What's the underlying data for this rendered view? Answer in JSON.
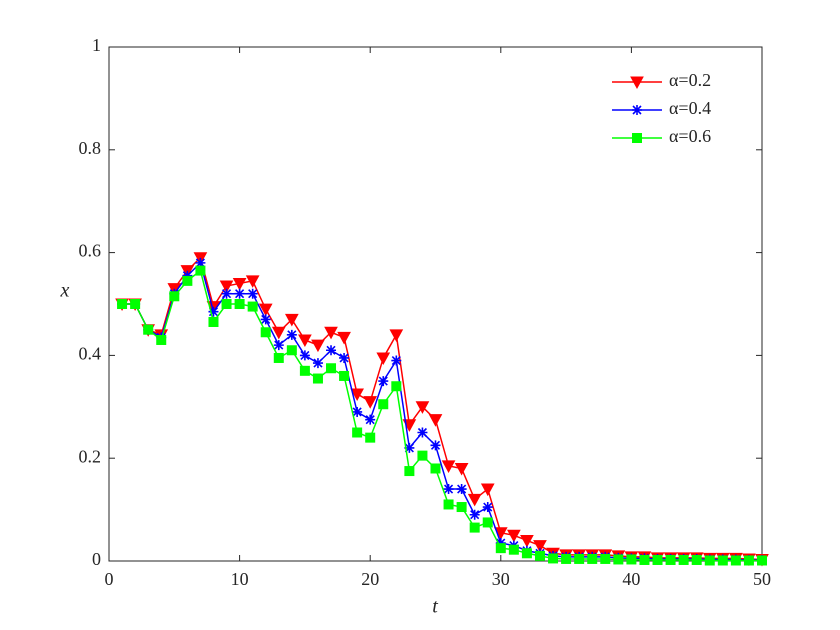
{
  "chart_data": {
    "type": "line",
    "x_label": "t",
    "y_label": "x",
    "x": [
      1,
      2,
      3,
      4,
      5,
      6,
      7,
      8,
      9,
      10,
      11,
      12,
      13,
      14,
      15,
      16,
      17,
      18,
      19,
      20,
      21,
      22,
      23,
      24,
      25,
      26,
      27,
      28,
      29,
      30,
      31,
      32,
      33,
      34,
      35,
      36,
      37,
      38,
      39,
      40,
      41,
      42,
      43,
      44,
      45,
      46,
      47,
      48,
      49,
      50
    ],
    "series": [
      {
        "name": "α=0.2",
        "color": "#ff0000",
        "marker": "triangle-down",
        "values": [
          0.5,
          0.5,
          0.45,
          0.44,
          0.53,
          0.565,
          0.59,
          0.495,
          0.535,
          0.54,
          0.545,
          0.49,
          0.445,
          0.47,
          0.43,
          0.42,
          0.445,
          0.435,
          0.325,
          0.31,
          0.395,
          0.44,
          0.265,
          0.3,
          0.275,
          0.185,
          0.18,
          0.12,
          0.14,
          0.055,
          0.05,
          0.04,
          0.03,
          0.015,
          0.012,
          0.012,
          0.012,
          0.012,
          0.01,
          0.008,
          0.008,
          0.006,
          0.006,
          0.006,
          0.006,
          0.005,
          0.005,
          0.005,
          0.004,
          0.003
        ]
      },
      {
        "name": "α=0.4",
        "color": "#0000ff",
        "marker": "asterisk",
        "values": [
          0.5,
          0.5,
          0.45,
          0.435,
          0.52,
          0.555,
          0.58,
          0.485,
          0.52,
          0.52,
          0.52,
          0.47,
          0.42,
          0.44,
          0.4,
          0.385,
          0.41,
          0.395,
          0.29,
          0.275,
          0.35,
          0.39,
          0.22,
          0.25,
          0.225,
          0.14,
          0.14,
          0.09,
          0.105,
          0.035,
          0.03,
          0.02,
          0.015,
          0.01,
          0.008,
          0.008,
          0.008,
          0.008,
          0.006,
          0.005,
          0.005,
          0.004,
          0.004,
          0.004,
          0.004,
          0.003,
          0.003,
          0.003,
          0.002,
          0.002
        ]
      },
      {
        "name": "α=0.6",
        "color": "#00ff00",
        "marker": "square",
        "values": [
          0.5,
          0.5,
          0.45,
          0.43,
          0.515,
          0.545,
          0.565,
          0.465,
          0.5,
          0.5,
          0.495,
          0.445,
          0.395,
          0.41,
          0.37,
          0.355,
          0.375,
          0.36,
          0.25,
          0.24,
          0.305,
          0.34,
          0.175,
          0.205,
          0.18,
          0.11,
          0.105,
          0.065,
          0.075,
          0.025,
          0.022,
          0.015,
          0.01,
          0.005,
          0.004,
          0.004,
          0.004,
          0.004,
          0.003,
          0.003,
          0.002,
          0.002,
          0.002,
          0.002,
          0.002,
          0.001,
          0.001,
          0.001,
          0.001,
          0.001
        ]
      }
    ],
    "xlim": [
      0,
      50
    ],
    "xticks": [
      0,
      10,
      20,
      30,
      40,
      50
    ],
    "ylim": [
      0,
      1
    ],
    "yticks": [
      0,
      0.2,
      0.4,
      0.6,
      0.8,
      1
    ],
    "legend": "upper-right"
  }
}
